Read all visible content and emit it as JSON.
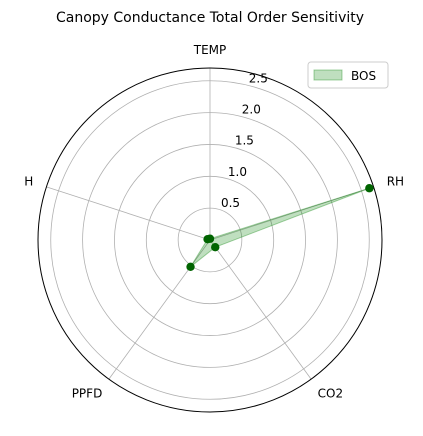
{
  "chart_data": {
    "type": "radar",
    "title": "Canopy Conductance Total Order Sensitivity",
    "axes": [
      "TEMP",
      "RH",
      "CO2",
      "PPFD",
      "H"
    ],
    "rlim": [
      0,
      2.7
    ],
    "rticks": [
      0.5,
      1.0,
      1.5,
      2.0,
      2.5
    ],
    "rtick_labels": [
      "0.5",
      "1.0",
      "1.5",
      "2.0",
      "2.5"
    ],
    "grid": true,
    "legend_position": "top-right",
    "series": [
      {
        "name": "BOS",
        "values": [
          0.02,
          2.63,
          0.14,
          0.52,
          0.04
        ],
        "line_color": "#008000",
        "fill_color": "#008000",
        "fill_alpha": 0.25,
        "marker_color": "#006400"
      }
    ]
  }
}
